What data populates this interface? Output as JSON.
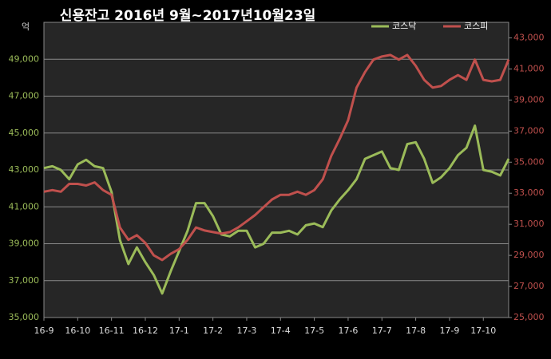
{
  "chart_data": {
    "type": "line",
    "title": "신용잔고 2016년 9월~2017년10월23일",
    "ylabel": "억",
    "x": [
      0,
      0.25,
      0.5,
      0.75,
      1,
      1.25,
      1.5,
      1.75,
      2,
      2.25,
      2.5,
      2.75,
      3,
      3.25,
      3.5,
      3.75,
      4,
      4.25,
      4.5,
      4.75,
      5,
      5.25,
      5.5,
      5.75,
      6,
      6.25,
      6.5,
      6.75,
      7,
      7.25,
      7.5,
      7.75,
      8,
      8.25,
      8.5,
      8.75,
      9,
      9.25,
      9.5,
      9.75,
      10,
      10.25,
      10.5,
      10.75,
      11,
      11.25,
      11.5,
      11.75,
      12,
      12.25,
      12.5,
      12.75,
      13,
      13.25,
      13.5,
      13.75
    ],
    "xlim": [
      0,
      13.75
    ],
    "xticks": [
      {
        "value": 0,
        "label": "16-9"
      },
      {
        "value": 1,
        "label": "16-10"
      },
      {
        "value": 2,
        "label": "16-11"
      },
      {
        "value": 3,
        "label": "16-12"
      },
      {
        "value": 4,
        "label": "17-1"
      },
      {
        "value": 5,
        "label": "17-2"
      },
      {
        "value": 6,
        "label": "17-3"
      },
      {
        "value": 7,
        "label": "17-4"
      },
      {
        "value": 8,
        "label": "17-5"
      },
      {
        "value": 9,
        "label": "17-6"
      },
      {
        "value": 10,
        "label": "17-7"
      },
      {
        "value": 11,
        "label": "17-8"
      },
      {
        "value": 12,
        "label": "17-9"
      },
      {
        "value": 13,
        "label": "17-10"
      }
    ],
    "ylim": [
      35000,
      51000
    ],
    "yticks": [
      {
        "value": 35000,
        "label": "35,000"
      },
      {
        "value": 37000,
        "label": "37,000"
      },
      {
        "value": 39000,
        "label": "39,000"
      },
      {
        "value": 41000,
        "label": "41,000"
      },
      {
        "value": 43000,
        "label": "43,000"
      },
      {
        "value": 45000,
        "label": "45,000"
      },
      {
        "value": 47000,
        "label": "47,000"
      },
      {
        "value": 49000,
        "label": "49,000"
      }
    ],
    "y2lim": [
      25000,
      44000
    ],
    "y2ticks": [
      {
        "value": 25000,
        "label": "25,000"
      },
      {
        "value": 27000,
        "label": "27,000"
      },
      {
        "value": 29000,
        "label": "29,000"
      },
      {
        "value": 31000,
        "label": "31,000"
      },
      {
        "value": 33000,
        "label": "33,000"
      },
      {
        "value": 35000,
        "label": "35,000"
      },
      {
        "value": 37000,
        "label": "37,000"
      },
      {
        "value": 39000,
        "label": "39,000"
      },
      {
        "value": 41000,
        "label": "41,000"
      },
      {
        "value": 43000,
        "label": "43,000"
      }
    ],
    "grid": true,
    "series": [
      {
        "name": "코스닥",
        "color": "#9bbb59",
        "values": [
          43100,
          43200,
          43000,
          42500,
          43300,
          43550,
          43200,
          43100,
          41800,
          39200,
          37900,
          38800,
          38000,
          37300,
          36300,
          37500,
          38600,
          39700,
          41200,
          41200,
          40500,
          39500,
          39400,
          39700,
          39700,
          38800,
          39000,
          39600,
          39600,
          39700,
          39500,
          40000,
          40100,
          39900,
          40800,
          41400,
          41900,
          42500,
          43600,
          43800,
          44000,
          43100,
          43000,
          44400,
          44500,
          43600,
          42300,
          42600,
          43100,
          43800,
          44200,
          45400,
          43000,
          42900,
          42700,
          43600
        ]
      },
      {
        "name": "코스피",
        "color": "#c0504d",
        "axis": "y2",
        "values": [
          33100,
          33200,
          33100,
          33600,
          33600,
          33500,
          33700,
          33200,
          32900,
          30800,
          30000,
          30300,
          29800,
          29000,
          28700,
          29100,
          29400,
          30000,
          30800,
          30600,
          30500,
          30400,
          30500,
          30800,
          31200,
          31600,
          32100,
          32600,
          32900,
          32900,
          33100,
          32900,
          33200,
          33900,
          35400,
          36500,
          37700,
          39800,
          40800,
          41600,
          41800,
          41900,
          41600,
          41900,
          41200,
          40300,
          39800,
          39900,
          40300,
          40600,
          40300,
          41600,
          40300,
          40200,
          40300,
          41600
        ]
      }
    ]
  }
}
